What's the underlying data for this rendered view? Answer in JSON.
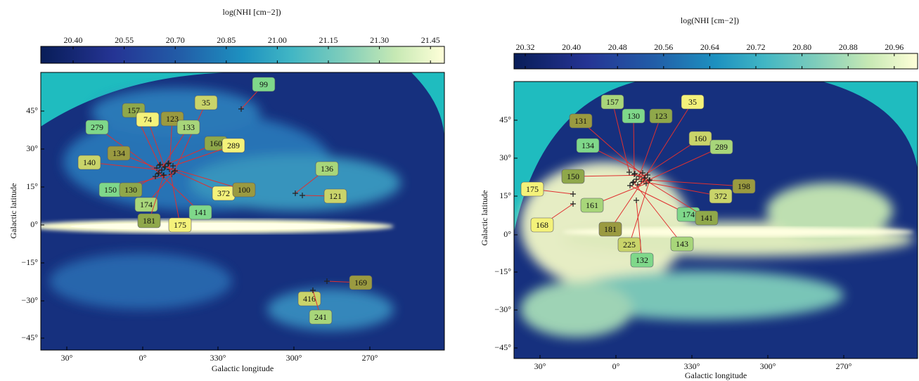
{
  "panels": [
    {
      "colorbar_label": "log(NHI [cm−2])",
      "colorbar_ticks": [
        "20.40",
        "20.55",
        "20.70",
        "20.85",
        "21.00",
        "21.15",
        "21.30",
        "21.45"
      ],
      "x_label": "Galactic longitude",
      "y_label": "Galactic latitude",
      "x_ticks": [
        "30°",
        "0°",
        "330°",
        "300°",
        "270°"
      ],
      "y_ticks": [
        "45°",
        "30°",
        "15°",
        "0°",
        "−15°",
        "−30°",
        "−45°"
      ],
      "labels": [
        "99",
        "157",
        "74",
        "123",
        "35",
        "133",
        "279",
        "160",
        "289",
        "134",
        "140",
        "136",
        "150",
        "130",
        "372",
        "100",
        "121",
        "174",
        "141",
        "181",
        "175",
        "169",
        "416",
        "241"
      ]
    },
    {
      "colorbar_label": "log(NHI [cm−2])",
      "colorbar_ticks": [
        "20.32",
        "20.40",
        "20.48",
        "20.56",
        "20.64",
        "20.72",
        "20.80",
        "20.88",
        "20.96"
      ],
      "x_label": "Galactic longitude",
      "y_label": "Galactic latitude",
      "x_ticks": [
        "30°",
        "0°",
        "330°",
        "300°",
        "270°"
      ],
      "y_ticks": [
        "45°",
        "30°",
        "15°",
        "0°",
        "−15°",
        "−30°",
        "−45°"
      ],
      "labels": [
        "157",
        "130",
        "123",
        "35",
        "131",
        "160",
        "289",
        "134",
        "150",
        "175",
        "198",
        "372",
        "161",
        "174",
        "141",
        "168",
        "181",
        "225",
        "143",
        "132"
      ]
    }
  ]
}
